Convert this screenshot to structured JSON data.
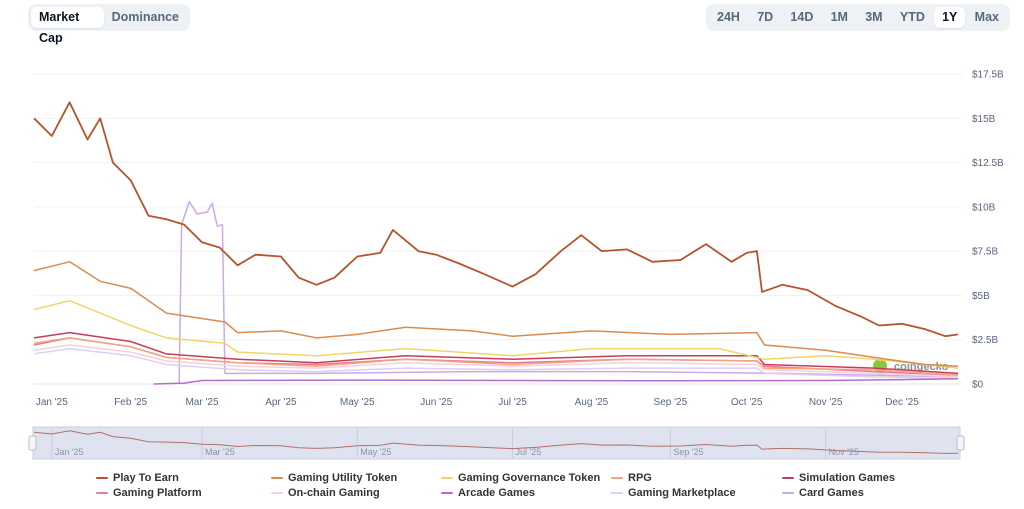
{
  "tabs": {
    "items": [
      "Market Cap",
      "Dominance"
    ],
    "active": "Market Cap"
  },
  "ranges": {
    "items": [
      "24H",
      "7D",
      "14D",
      "1M",
      "3M",
      "YTD",
      "1Y",
      "Max"
    ],
    "active": "1Y"
  },
  "watermark": "coingecko",
  "chart_data": {
    "type": "line",
    "title": "",
    "xlabel": "",
    "ylabel": "",
    "ylim": [
      0,
      17.5
    ],
    "xlim": [
      "2024-12-25",
      "2025-12-23"
    ],
    "y_ticks": [
      "$0",
      "$2.5B",
      "$5B",
      "$7.5B",
      "$10B",
      "$12.5B",
      "$15B",
      "$17.5B"
    ],
    "y_tick_values": [
      0,
      2.5,
      5,
      7.5,
      10,
      12.5,
      15,
      17.5
    ],
    "y_unit": "USD billions",
    "x_ticks": [
      "Jan '25",
      "Feb '25",
      "Mar '25",
      "Apr '25",
      "May '25",
      "Jun '25",
      "Jul '25",
      "Aug '25",
      "Sep '25",
      "Oct '25",
      "Nov '25",
      "Dec '25"
    ],
    "x_tick_dates": [
      "2025-01-01",
      "2025-02-01",
      "2025-03-01",
      "2025-04-01",
      "2025-05-01",
      "2025-06-01",
      "2025-07-01",
      "2025-08-01",
      "2025-09-01",
      "2025-10-01",
      "2025-11-01",
      "2025-12-01"
    ],
    "navigator_ticks": [
      "Jan '25",
      "Mar '25",
      "May '25",
      "Jul '25",
      "Sep '25",
      "Nov '25"
    ],
    "navigator_tick_dates": [
      "2025-01-01",
      "2025-03-01",
      "2025-05-01",
      "2025-07-01",
      "2025-09-01",
      "2025-11-01"
    ],
    "grid": true,
    "legend_position": "bottom",
    "series": [
      {
        "name": "Play To Earn",
        "color": "#b5532c",
        "points": [
          [
            "2024-12-25",
            15.0
          ],
          [
            "2025-01-01",
            14.0
          ],
          [
            "2025-01-08",
            15.9
          ],
          [
            "2025-01-15",
            13.8
          ],
          [
            "2025-01-20",
            15.0
          ],
          [
            "2025-01-25",
            12.5
          ],
          [
            "2025-02-01",
            11.5
          ],
          [
            "2025-02-08",
            9.5
          ],
          [
            "2025-02-15",
            9.3
          ],
          [
            "2025-02-22",
            9.0
          ],
          [
            "2025-03-01",
            8.0
          ],
          [
            "2025-03-08",
            7.7
          ],
          [
            "2025-03-15",
            6.7
          ],
          [
            "2025-03-22",
            7.3
          ],
          [
            "2025-04-01",
            7.2
          ],
          [
            "2025-04-08",
            6.0
          ],
          [
            "2025-04-15",
            5.6
          ],
          [
            "2025-04-22",
            6.0
          ],
          [
            "2025-05-01",
            7.2
          ],
          [
            "2025-05-10",
            7.4
          ],
          [
            "2025-05-15",
            8.7
          ],
          [
            "2025-05-25",
            7.5
          ],
          [
            "2025-06-01",
            7.3
          ],
          [
            "2025-06-10",
            6.8
          ],
          [
            "2025-06-20",
            6.2
          ],
          [
            "2025-07-01",
            5.5
          ],
          [
            "2025-07-10",
            6.2
          ],
          [
            "2025-07-20",
            7.5
          ],
          [
            "2025-07-28",
            8.4
          ],
          [
            "2025-08-05",
            7.5
          ],
          [
            "2025-08-15",
            7.6
          ],
          [
            "2025-08-25",
            6.9
          ],
          [
            "2025-09-05",
            7.0
          ],
          [
            "2025-09-15",
            7.9
          ],
          [
            "2025-09-25",
            6.9
          ],
          [
            "2025-10-01",
            7.4
          ],
          [
            "2025-10-05",
            7.5
          ],
          [
            "2025-10-07",
            5.2
          ],
          [
            "2025-10-15",
            5.6
          ],
          [
            "2025-10-25",
            5.3
          ],
          [
            "2025-11-05",
            4.4
          ],
          [
            "2025-11-15",
            3.8
          ],
          [
            "2025-11-22",
            3.3
          ],
          [
            "2025-12-01",
            3.4
          ],
          [
            "2025-12-10",
            3.1
          ],
          [
            "2025-12-18",
            2.7
          ],
          [
            "2025-12-23",
            2.8
          ]
        ]
      },
      {
        "name": "Gaming Utility Token",
        "color": "#d98c4f",
        "points": [
          [
            "2024-12-25",
            6.4
          ],
          [
            "2025-01-08",
            6.9
          ],
          [
            "2025-01-20",
            5.8
          ],
          [
            "2025-02-01",
            5.4
          ],
          [
            "2025-02-15",
            4.0
          ],
          [
            "2025-03-01",
            3.7
          ],
          [
            "2025-03-10",
            3.5
          ],
          [
            "2025-03-15",
            2.9
          ],
          [
            "2025-04-01",
            3.0
          ],
          [
            "2025-04-15",
            2.6
          ],
          [
            "2025-05-01",
            2.8
          ],
          [
            "2025-05-20",
            3.2
          ],
          [
            "2025-06-15",
            3.0
          ],
          [
            "2025-07-01",
            2.7
          ],
          [
            "2025-08-01",
            3.0
          ],
          [
            "2025-09-01",
            2.8
          ],
          [
            "2025-10-05",
            2.9
          ],
          [
            "2025-10-08",
            2.2
          ],
          [
            "2025-11-01",
            1.9
          ],
          [
            "2025-11-20",
            1.5
          ],
          [
            "2025-12-10",
            1.1
          ],
          [
            "2025-12-23",
            1.0
          ]
        ]
      },
      {
        "name": "Gaming Governance Token",
        "color": "#f2d46b",
        "points": [
          [
            "2024-12-25",
            4.2
          ],
          [
            "2025-01-08",
            4.7
          ],
          [
            "2025-02-01",
            3.3
          ],
          [
            "2025-02-15",
            2.6
          ],
          [
            "2025-03-10",
            2.3
          ],
          [
            "2025-03-15",
            1.8
          ],
          [
            "2025-04-15",
            1.6
          ],
          [
            "2025-05-20",
            2.0
          ],
          [
            "2025-07-01",
            1.6
          ],
          [
            "2025-08-01",
            2.0
          ],
          [
            "2025-09-20",
            2.0
          ],
          [
            "2025-10-08",
            1.4
          ],
          [
            "2025-11-01",
            1.6
          ],
          [
            "2025-11-20",
            1.4
          ],
          [
            "2025-12-23",
            0.9
          ]
        ]
      },
      {
        "name": "RPG",
        "color": "#f0a77f",
        "points": [
          [
            "2024-12-25",
            2.3
          ],
          [
            "2025-01-08",
            2.6
          ],
          [
            "2025-02-01",
            2.1
          ],
          [
            "2025-02-15",
            1.5
          ],
          [
            "2025-03-15",
            1.2
          ],
          [
            "2025-04-15",
            1.0
          ],
          [
            "2025-05-20",
            1.4
          ],
          [
            "2025-07-01",
            1.1
          ],
          [
            "2025-08-15",
            1.4
          ],
          [
            "2025-10-05",
            1.3
          ],
          [
            "2025-10-08",
            0.9
          ],
          [
            "2025-11-20",
            0.8
          ],
          [
            "2025-12-23",
            0.5
          ]
        ]
      },
      {
        "name": "Simulation Games",
        "color": "#c43d5c",
        "points": [
          [
            "2024-12-25",
            2.6
          ],
          [
            "2025-01-08",
            2.9
          ],
          [
            "2025-02-01",
            2.4
          ],
          [
            "2025-02-15",
            1.7
          ],
          [
            "2025-03-15",
            1.4
          ],
          [
            "2025-04-15",
            1.2
          ],
          [
            "2025-05-20",
            1.6
          ],
          [
            "2025-07-01",
            1.4
          ],
          [
            "2025-08-15",
            1.6
          ],
          [
            "2025-10-05",
            1.6
          ],
          [
            "2025-10-08",
            1.1
          ],
          [
            "2025-11-20",
            0.9
          ],
          [
            "2025-12-23",
            0.6
          ]
        ]
      },
      {
        "name": "Gaming Platform",
        "color": "#e87a9a",
        "points": [
          [
            "2024-12-25",
            2.2
          ],
          [
            "2025-01-08",
            2.6
          ],
          [
            "2025-02-01",
            2.1
          ],
          [
            "2025-02-15",
            1.5
          ],
          [
            "2025-03-15",
            1.2
          ],
          [
            "2025-04-15",
            1.1
          ],
          [
            "2025-05-20",
            1.4
          ],
          [
            "2025-07-01",
            1.2
          ],
          [
            "2025-08-15",
            1.4
          ],
          [
            "2025-10-05",
            1.3
          ],
          [
            "2025-10-08",
            1.0
          ],
          [
            "2025-11-20",
            0.7
          ],
          [
            "2025-12-23",
            0.5
          ]
        ]
      },
      {
        "name": "On-chain Gaming",
        "color": "#f7d0dc",
        "points": [
          [
            "2024-12-25",
            1.9
          ],
          [
            "2025-01-08",
            2.2
          ],
          [
            "2025-02-01",
            1.8
          ],
          [
            "2025-02-15",
            1.3
          ],
          [
            "2025-03-15",
            1.0
          ],
          [
            "2025-04-15",
            0.9
          ],
          [
            "2025-05-20",
            1.2
          ],
          [
            "2025-07-01",
            1.0
          ],
          [
            "2025-08-15",
            1.2
          ],
          [
            "2025-10-05",
            1.1
          ],
          [
            "2025-10-08",
            0.8
          ],
          [
            "2025-11-20",
            0.6
          ],
          [
            "2025-12-23",
            0.4
          ]
        ]
      },
      {
        "name": "Arcade Games",
        "color": "#b86cc9",
        "points": [
          [
            "2025-02-10",
            0.0
          ],
          [
            "2025-02-22",
            0.05
          ],
          [
            "2025-03-01",
            0.2
          ],
          [
            "2025-05-01",
            0.22
          ],
          [
            "2025-07-01",
            0.2
          ],
          [
            "2025-09-01",
            0.18
          ],
          [
            "2025-11-01",
            0.2
          ],
          [
            "2025-12-01",
            0.25
          ],
          [
            "2025-12-23",
            0.3
          ]
        ]
      },
      {
        "name": "Gaming Marketplace",
        "color": "#ddd0f0",
        "points": [
          [
            "2024-12-25",
            1.7
          ],
          [
            "2025-01-08",
            2.0
          ],
          [
            "2025-02-01",
            1.6
          ],
          [
            "2025-02-15",
            1.1
          ],
          [
            "2025-03-15",
            0.8
          ],
          [
            "2025-04-15",
            0.7
          ],
          [
            "2025-05-20",
            0.9
          ],
          [
            "2025-07-01",
            0.8
          ],
          [
            "2025-08-15",
            0.9
          ],
          [
            "2025-10-05",
            0.9
          ],
          [
            "2025-10-08",
            0.6
          ],
          [
            "2025-11-20",
            0.4
          ],
          [
            "2025-12-23",
            0.3
          ]
        ]
      },
      {
        "name": "Card Games",
        "color": "#cda8ec",
        "points": [
          [
            "2025-02-20",
            0.0
          ],
          [
            "2025-02-21",
            9.0
          ],
          [
            "2025-02-24",
            10.3
          ],
          [
            "2025-02-27",
            9.6
          ],
          [
            "2025-03-03",
            9.7
          ],
          [
            "2025-03-05",
            10.2
          ],
          [
            "2025-03-07",
            8.9
          ],
          [
            "2025-03-09",
            9.0
          ],
          [
            "2025-03-10",
            0.6
          ],
          [
            "2025-04-15",
            0.6
          ],
          [
            "2025-06-15",
            0.7
          ],
          [
            "2025-08-15",
            0.7
          ],
          [
            "2025-10-15",
            0.6
          ],
          [
            "2025-12-23",
            0.4
          ]
        ]
      }
    ]
  }
}
